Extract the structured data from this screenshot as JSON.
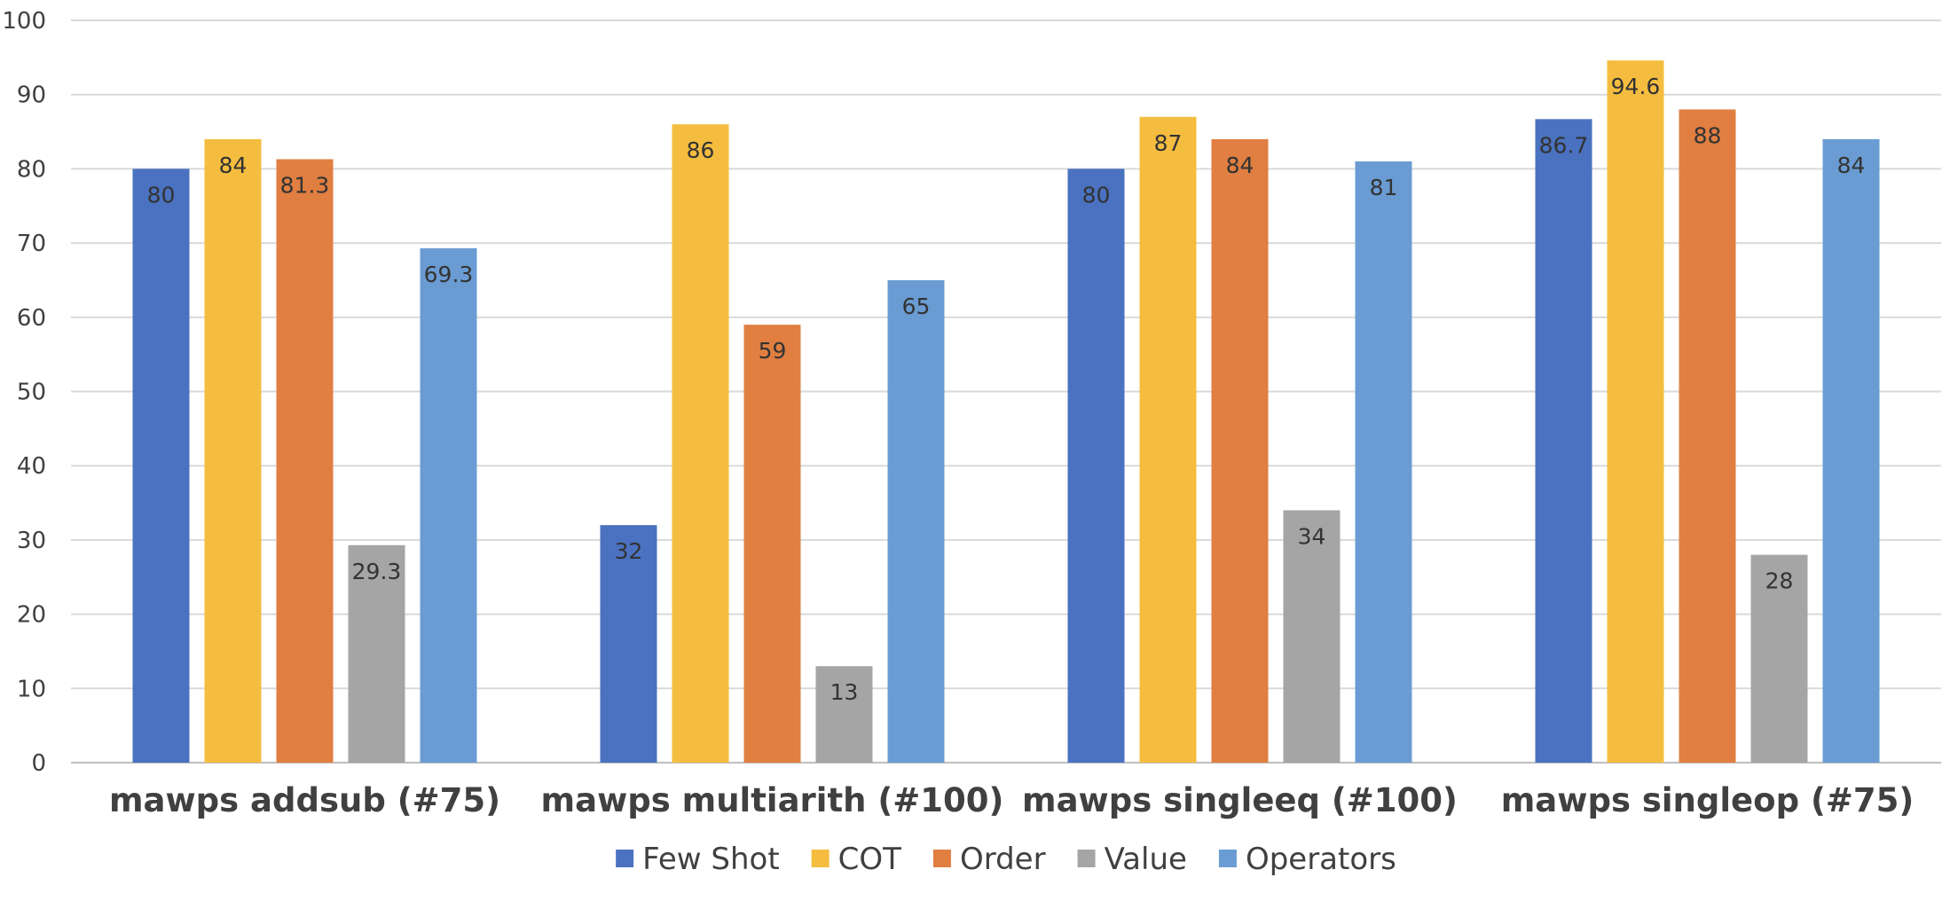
{
  "chart_data": {
    "type": "bar",
    "categories": [
      "mawps addsub (#75)",
      "mawps multiarith (#100)",
      "mawps singleeq (#100)",
      "mawps singleop (#75)"
    ],
    "series": [
      {
        "name": "Few Shot",
        "color": "#4a72c0",
        "values": [
          80,
          32,
          80,
          86.7
        ]
      },
      {
        "name": "COT",
        "color": "#f5bd3f",
        "values": [
          84,
          86,
          87,
          94.6
        ]
      },
      {
        "name": "Order",
        "color": "#e07f41",
        "values": [
          81.3,
          59,
          84,
          88
        ]
      },
      {
        "name": "Value",
        "color": "#a5a5a5",
        "values": [
          29.3,
          13,
          34,
          28
        ]
      },
      {
        "name": "Operators",
        "color": "#6a9cd3",
        "values": [
          69.3,
          65,
          81,
          84
        ]
      }
    ],
    "ylim": [
      0,
      100
    ],
    "yticks": [
      0,
      10,
      20,
      30,
      40,
      50,
      60,
      70,
      80,
      90,
      100
    ],
    "grid": true,
    "legend": "bottom",
    "data_labels": true
  }
}
